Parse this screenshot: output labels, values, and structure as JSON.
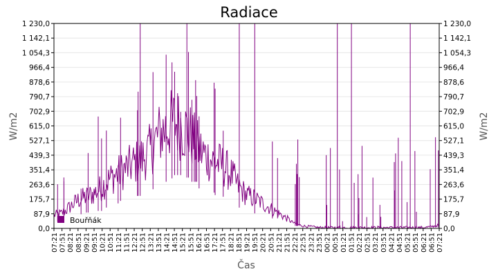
{
  "colors": {
    "series": "#800080",
    "grid": "#e6e6e6",
    "axis": "#000000",
    "background": "#ffffff"
  },
  "chart_data": {
    "type": "line",
    "title": "Radiace",
    "xlabel": "Čas",
    "ylabel": "W/m2",
    "ylabel_right": "W/m2",
    "grid": true,
    "legend_position": "bottom-left",
    "ylim": [
      0,
      1230
    ],
    "y_ticks": [
      "1 230,0",
      "1 142,1",
      "1 054,3",
      "966,4",
      "878,6",
      "790,7",
      "702,9",
      "615,0",
      "527,1",
      "439,3",
      "351,4",
      "263,6",
      "175,7",
      "87,9",
      "0,0"
    ],
    "x_ticks": [
      "07:21",
      "07:51",
      "08:21",
      "08:51",
      "09:21",
      "09:51",
      "10:21",
      "10:51",
      "11:21",
      "11:51",
      "12:21",
      "12:51",
      "13:21",
      "13:51",
      "14:21",
      "14:51",
      "15:21",
      "15:51",
      "16:21",
      "16:51",
      "17:21",
      "17:51",
      "18:21",
      "18:51",
      "19:21",
      "19:51",
      "20:21",
      "20:51",
      "21:21",
      "21:51",
      "22:21",
      "22:51",
      "23:21",
      "23:51",
      "00:21",
      "00:51",
      "01:21",
      "01:51",
      "02:21",
      "02:51",
      "03:21",
      "03:51",
      "04:21",
      "04:51",
      "05:21",
      "05:51",
      "06:21",
      "06:51",
      "07:21"
    ],
    "series": [
      {
        "name": "Bouřňák",
        "x": [
          "07:21",
          "07:51",
          "08:21",
          "08:51",
          "09:21",
          "09:51",
          "10:21",
          "10:51",
          "11:21",
          "11:51",
          "12:21",
          "12:51",
          "13:21",
          "13:51",
          "14:21",
          "14:51",
          "15:21",
          "15:51",
          "16:21",
          "16:51",
          "17:21",
          "17:51",
          "18:21",
          "18:51",
          "19:21",
          "19:51",
          "20:21",
          "20:51",
          "21:21",
          "21:51",
          "22:21",
          "22:51",
          "23:21",
          "23:51",
          "00:21",
          "00:51",
          "01:21",
          "01:51",
          "02:21",
          "02:51",
          "03:21",
          "03:51",
          "04:21",
          "04:51",
          "05:21",
          "05:51",
          "06:21",
          "06:51",
          "07:21"
        ],
        "values": [
          80,
          90,
          130,
          170,
          190,
          210,
          250,
          300,
          330,
          360,
          390,
          420,
          470,
          560,
          600,
          640,
          610,
          560,
          480,
          430,
          400,
          380,
          330,
          250,
          200,
          180,
          150,
          120,
          90,
          60,
          30,
          15,
          10,
          5,
          5,
          5,
          5,
          5,
          5,
          5,
          5,
          5,
          5,
          5,
          5,
          5,
          5,
          10,
          20
        ]
      }
    ]
  }
}
